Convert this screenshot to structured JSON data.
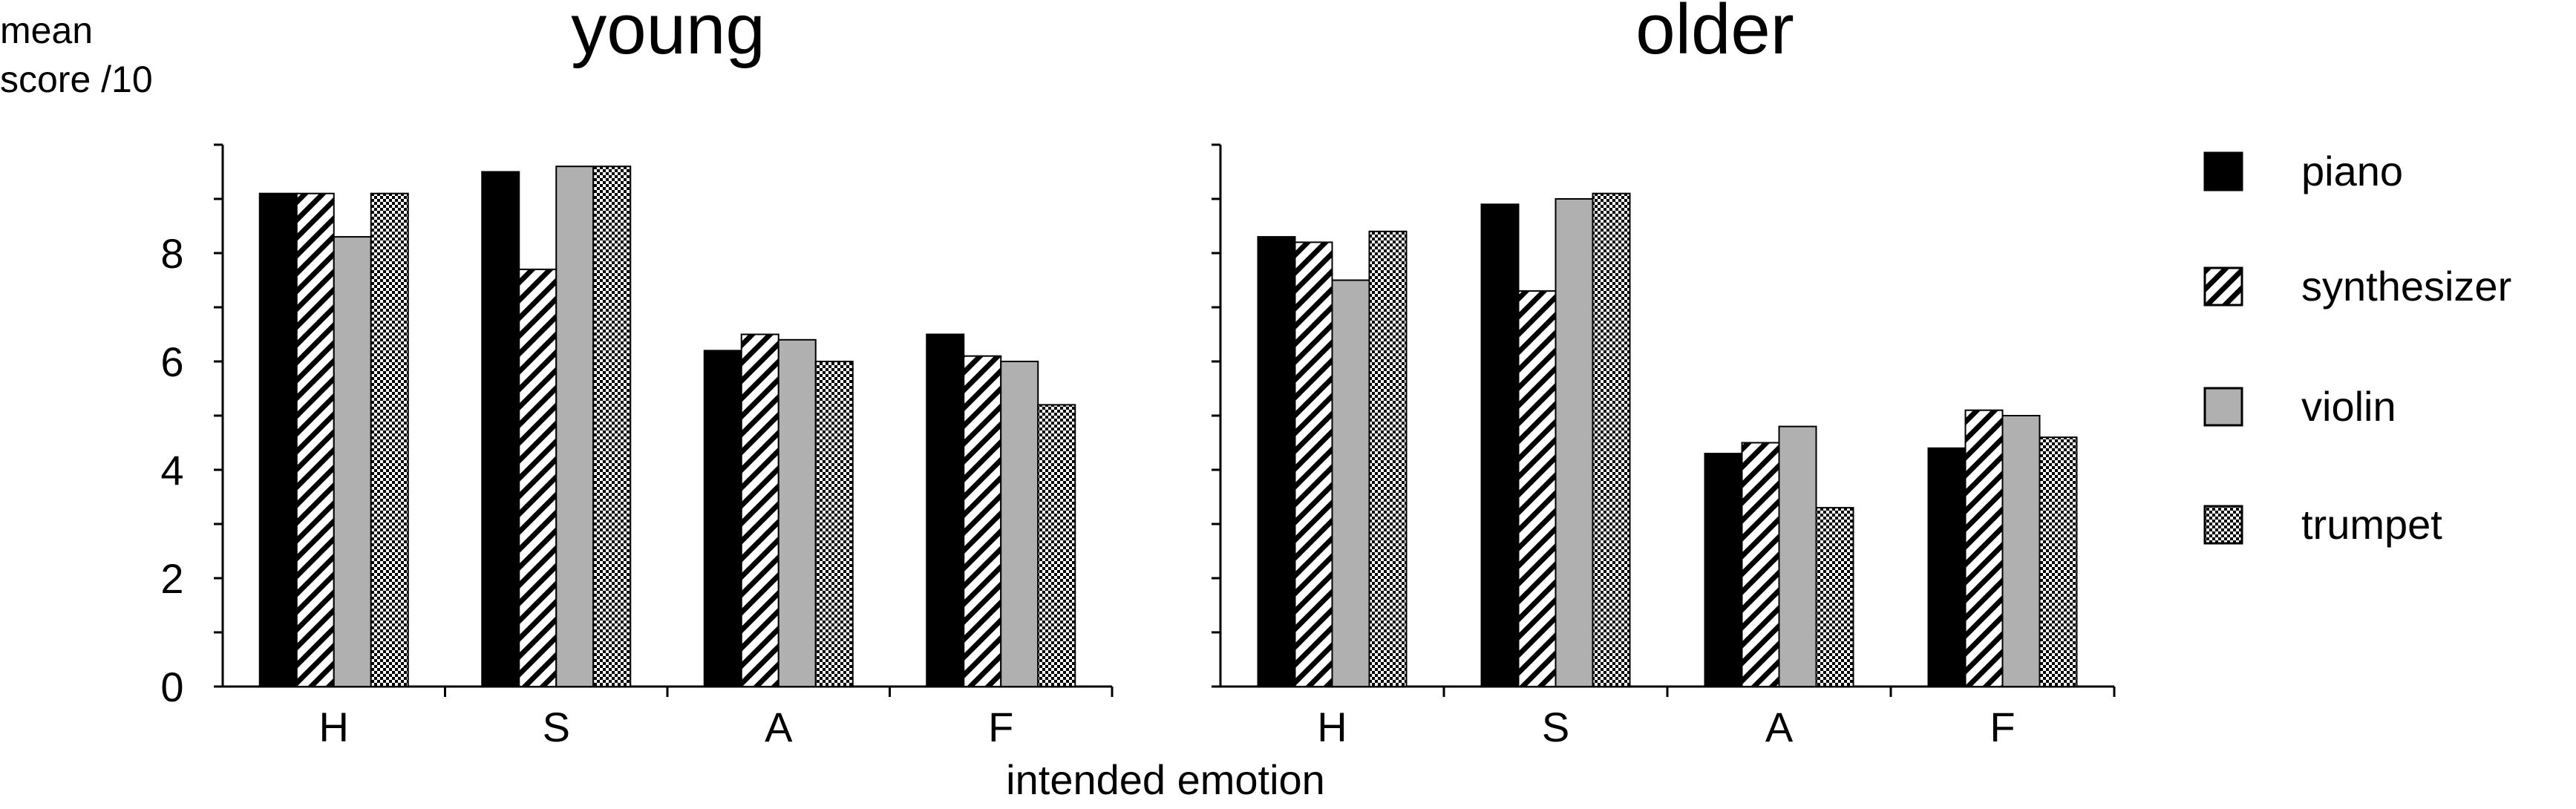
{
  "chart_data": [
    {
      "type": "bar",
      "title": "young",
      "ylabel": "mean score /10",
      "xlabel": "intended emotion",
      "categories": [
        "H",
        "S",
        "A",
        "F"
      ],
      "ylim": [
        0,
        10
      ],
      "yticks": [
        0,
        2,
        4,
        6,
        8
      ],
      "grid": false,
      "series": [
        {
          "name": "piano",
          "values": [
            9.1,
            9.5,
            6.2,
            6.5
          ]
        },
        {
          "name": "synthesizer",
          "values": [
            9.1,
            7.7,
            6.5,
            6.1
          ]
        },
        {
          "name": "violin",
          "values": [
            8.3,
            9.6,
            6.4,
            6.0
          ]
        },
        {
          "name": "trumpet",
          "values": [
            9.1,
            9.6,
            6.0,
            5.2
          ]
        }
      ]
    },
    {
      "type": "bar",
      "title": "older",
      "categories": [
        "H",
        "S",
        "A",
        "F"
      ],
      "ylim": [
        0,
        10
      ],
      "grid": false,
      "series": [
        {
          "name": "piano",
          "values": [
            8.3,
            8.9,
            4.3,
            4.4
          ]
        },
        {
          "name": "synthesizer",
          "values": [
            8.2,
            7.3,
            4.5,
            5.1
          ]
        },
        {
          "name": "violin",
          "values": [
            7.5,
            9.0,
            4.8,
            5.0
          ]
        },
        {
          "name": "trumpet",
          "values": [
            8.4,
            9.1,
            3.3,
            4.6
          ]
        }
      ]
    }
  ],
  "legend": {
    "placement": "right",
    "items": [
      {
        "label": "piano",
        "fill": "solid-black"
      },
      {
        "label": "synthesizer",
        "fill": "diagonal-stripes"
      },
      {
        "label": "violin",
        "fill": "solid-gray"
      },
      {
        "label": "trumpet",
        "fill": "checkerboard"
      }
    ]
  },
  "colors": {
    "piano": "#000000",
    "violin": "#b0b0b0",
    "stroke": "#000000"
  },
  "ylabel_lines": [
    "mean",
    "score /10"
  ]
}
